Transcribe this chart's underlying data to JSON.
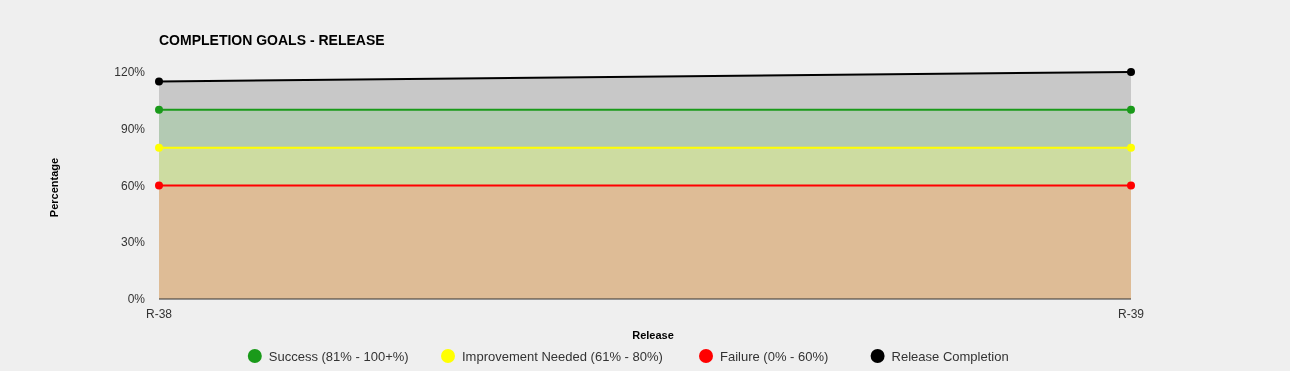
{
  "chart_data": {
    "type": "area",
    "title": "COMPLETION GOALS - RELEASE",
    "xlabel": "Release",
    "ylabel": "Percentage",
    "categories": [
      "R-38",
      "R-39"
    ],
    "series": [
      {
        "name": "Success (81% - 100+%)",
        "color": "#1a9a1a",
        "values": [
          100,
          100
        ]
      },
      {
        "name": "Improvement Needed (61% - 80%)",
        "color": "#ffff00",
        "values": [
          80,
          80
        ]
      },
      {
        "name": "Failure (0% - 60%)",
        "color": "#ff0000",
        "values": [
          60,
          60
        ]
      },
      {
        "name": "Release Completion",
        "color": "#000000",
        "values": [
          115,
          120
        ]
      }
    ],
    "ylim": [
      0,
      120
    ],
    "yticks": [
      {
        "value": 0,
        "label": "0%"
      },
      {
        "value": 30,
        "label": "30%"
      },
      {
        "value": 60,
        "label": "60%"
      },
      {
        "value": 90,
        "label": "90%"
      },
      {
        "value": 120,
        "label": "120%"
      }
    ],
    "legend": "bottom",
    "marker": "circle"
  }
}
